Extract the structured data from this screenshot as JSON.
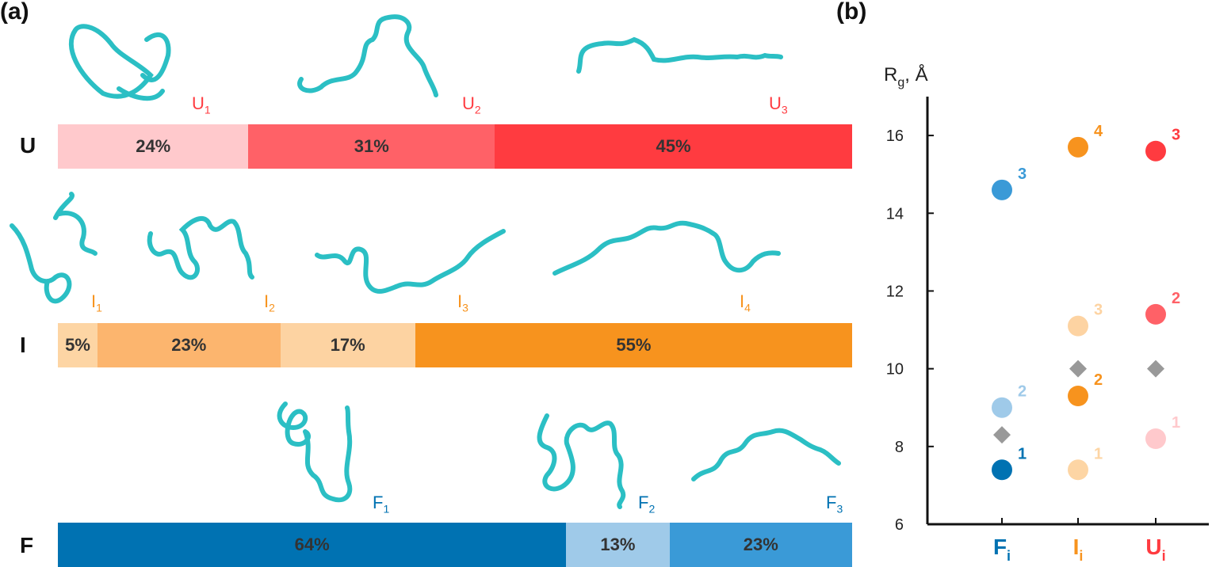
{
  "panel_a_label": "(a)",
  "panel_b_label": "(b)",
  "colors": {
    "u1": "#ffc9cc",
    "u2": "#ff6167",
    "u3": "#ff3b40",
    "i1": "#fdd5a4",
    "i2": "#fcb56e",
    "i3": "#fdd3a2",
    "i4": "#f7931e",
    "f1": "#0072b2",
    "f2": "#9fcae9",
    "f3": "#3a9ad7",
    "peptide": "#2bbfc4",
    "diamond": "#999999"
  },
  "rows": [
    {
      "label": "U",
      "segments": [
        {
          "text": "24%",
          "value": 24,
          "color_key": "u1"
        },
        {
          "text": "31%",
          "value": 31,
          "color_key": "u2"
        },
        {
          "text": "45%",
          "value": 45,
          "color_key": "u3"
        }
      ],
      "structures": [
        {
          "base": "U",
          "sub": "1",
          "color": "#ff3b40"
        },
        {
          "base": "U",
          "sub": "2",
          "color": "#ff3b40"
        },
        {
          "base": "U",
          "sub": "3",
          "color": "#ff3b40"
        }
      ]
    },
    {
      "label": "I",
      "segments": [
        {
          "text": "5%",
          "value": 5,
          "color_key": "i1"
        },
        {
          "text": "23%",
          "value": 23,
          "color_key": "i2"
        },
        {
          "text": "17%",
          "value": 17,
          "color_key": "i3"
        },
        {
          "text": "55%",
          "value": 55,
          "color_key": "i4"
        }
      ],
      "structures": [
        {
          "base": "I",
          "sub": "1",
          "color": "#f7931e"
        },
        {
          "base": "I",
          "sub": "2",
          "color": "#f7931e"
        },
        {
          "base": "I",
          "sub": "3",
          "color": "#f7931e"
        },
        {
          "base": "I",
          "sub": "4",
          "color": "#f7931e"
        }
      ]
    },
    {
      "label": "F",
      "segments": [
        {
          "text": "64%",
          "value": 64,
          "color_key": "f1"
        },
        {
          "text": "13%",
          "value": 13,
          "color_key": "f2"
        },
        {
          "text": "23%",
          "value": 23,
          "color_key": "f3"
        }
      ],
      "structures": [
        {
          "base": "F",
          "sub": "1",
          "color": "#0072b2"
        },
        {
          "base": "F",
          "sub": "2",
          "color": "#0072b2"
        },
        {
          "base": "F",
          "sub": "3",
          "color": "#0072b2"
        }
      ]
    }
  ],
  "chart_data": {
    "type": "scatter",
    "ylabel_base": "R",
    "ylabel_sub": "g",
    "ylabel_rest": ", Å",
    "ylim": [
      6,
      17
    ],
    "yticks": [
      6,
      8,
      10,
      12,
      14,
      16
    ],
    "categories": [
      {
        "base": "F",
        "sub": "i",
        "color": "#0072b2"
      },
      {
        "base": "I",
        "sub": "i",
        "color": "#f7931e"
      },
      {
        "base": "U",
        "sub": "i",
        "color": "#ff3b40"
      }
    ],
    "points": [
      {
        "category": 0,
        "y": 7.4,
        "label": "1",
        "color": "#0072b2"
      },
      {
        "category": 0,
        "y": 9.0,
        "label": "2",
        "color": "#9fcae9"
      },
      {
        "category": 0,
        "y": 14.6,
        "label": "3",
        "color": "#3a9ad7"
      },
      {
        "category": 1,
        "y": 7.4,
        "label": "1",
        "color": "#fdd5a4"
      },
      {
        "category": 1,
        "y": 9.3,
        "label": "2",
        "color": "#f7931e"
      },
      {
        "category": 1,
        "y": 11.1,
        "label": "3",
        "color": "#fdd3a2"
      },
      {
        "category": 1,
        "y": 15.7,
        "label": "4",
        "color": "#f7931e"
      },
      {
        "category": 2,
        "y": 8.2,
        "label": "1",
        "color": "#ffc9cc"
      },
      {
        "category": 2,
        "y": 11.4,
        "label": "2",
        "color": "#ff6167"
      },
      {
        "category": 2,
        "y": 15.6,
        "label": "3",
        "color": "#ff3b40"
      }
    ],
    "averages": [
      {
        "category": 0,
        "y": 8.3
      },
      {
        "category": 1,
        "y": 10.0
      },
      {
        "category": 2,
        "y": 10.0
      }
    ]
  }
}
